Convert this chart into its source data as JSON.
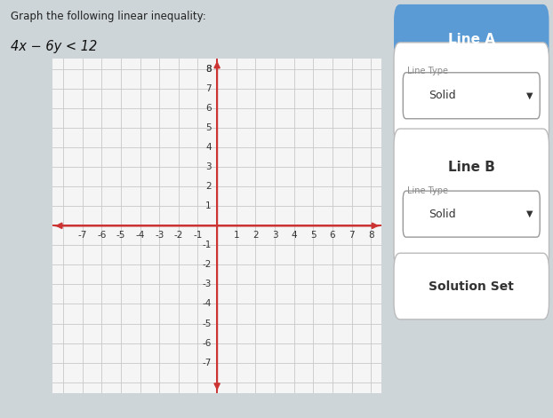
{
  "title_line1": "Graph the following linear inequality:",
  "title_line2": "4x − 6y < 12",
  "x_min": -8,
  "x_max": 8,
  "y_min": -8,
  "y_max": 8,
  "grid_color": "#c8c8c8",
  "axis_color": "#cc3333",
  "background_color": "#cdd5d8",
  "plot_bg_color": "#f5f5f5",
  "tick_labels_x_neg": [
    -7,
    -6,
    -5,
    -4,
    -3,
    -2,
    -1
  ],
  "tick_labels_x_pos": [
    1,
    2,
    3,
    4,
    5,
    6,
    7,
    8
  ],
  "tick_labels_y_neg": [
    -1,
    -2,
    -3,
    -4,
    -5,
    -6,
    -7
  ],
  "tick_labels_y_pos": [
    1,
    2,
    3,
    4,
    5,
    6,
    7,
    8
  ],
  "line_a_header_bg": "#5b9bd5",
  "line_a_header_text": "Line A",
  "line_b_header_text": "Line B",
  "solution_set_text": "Solution Set",
  "line_type_text": "Line Type",
  "solid_text": "Solid",
  "tick_fontsize": 7.5,
  "panel_border_color": "#aaaaaa",
  "panel_bg_color": "#f0f2f3"
}
